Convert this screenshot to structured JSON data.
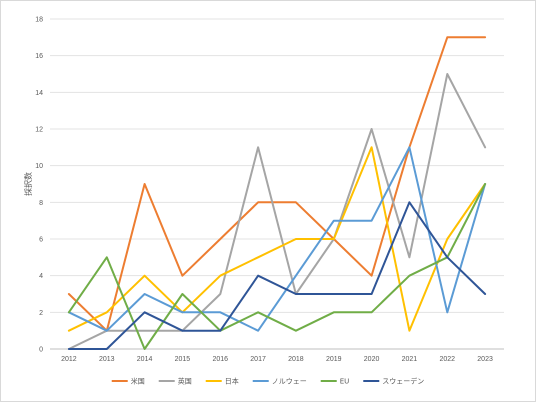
{
  "chart_data": {
    "type": "line",
    "title": "",
    "xlabel": "",
    "ylabel": "採択数",
    "ylim": [
      0,
      18
    ],
    "y_ticks": [
      "0",
      "2",
      "4",
      "6",
      "8",
      "10",
      "12",
      "14",
      "16",
      "18"
    ],
    "grid": true,
    "legend_position": "bottom",
    "categories": [
      "2012",
      "2013",
      "2014",
      "2015",
      "2016",
      "2017",
      "2018",
      "2019",
      "2020",
      "2021",
      "2022",
      "2023"
    ],
    "series": [
      {
        "name": "米国",
        "color": "#ed7d31",
        "values": [
          3,
          1,
          9,
          4,
          6,
          8,
          8,
          6,
          4,
          11,
          17,
          17
        ]
      },
      {
        "name": "英国",
        "color": "#a5a5a5",
        "values": [
          0,
          1,
          1,
          1,
          3,
          11,
          3,
          6,
          12,
          5,
          15,
          11
        ]
      },
      {
        "name": "日本",
        "color": "#ffc000",
        "values": [
          1,
          2,
          4,
          2,
          4,
          5,
          6,
          6,
          11,
          1,
          6,
          9
        ]
      },
      {
        "name": "ノルウェー",
        "color": "#5b9bd5",
        "values": [
          2,
          1,
          3,
          2,
          2,
          1,
          4,
          7,
          7,
          11,
          2,
          9
        ]
      },
      {
        "name": "EU",
        "color": "#70ad47",
        "values": [
          2,
          5,
          0,
          3,
          1,
          2,
          1,
          2,
          2,
          4,
          5,
          9
        ]
      },
      {
        "name": "スウェーデン",
        "color": "#2f5597",
        "values": [
          0,
          0,
          2,
          1,
          1,
          4,
          3,
          3,
          3,
          8,
          5,
          3
        ]
      }
    ]
  }
}
